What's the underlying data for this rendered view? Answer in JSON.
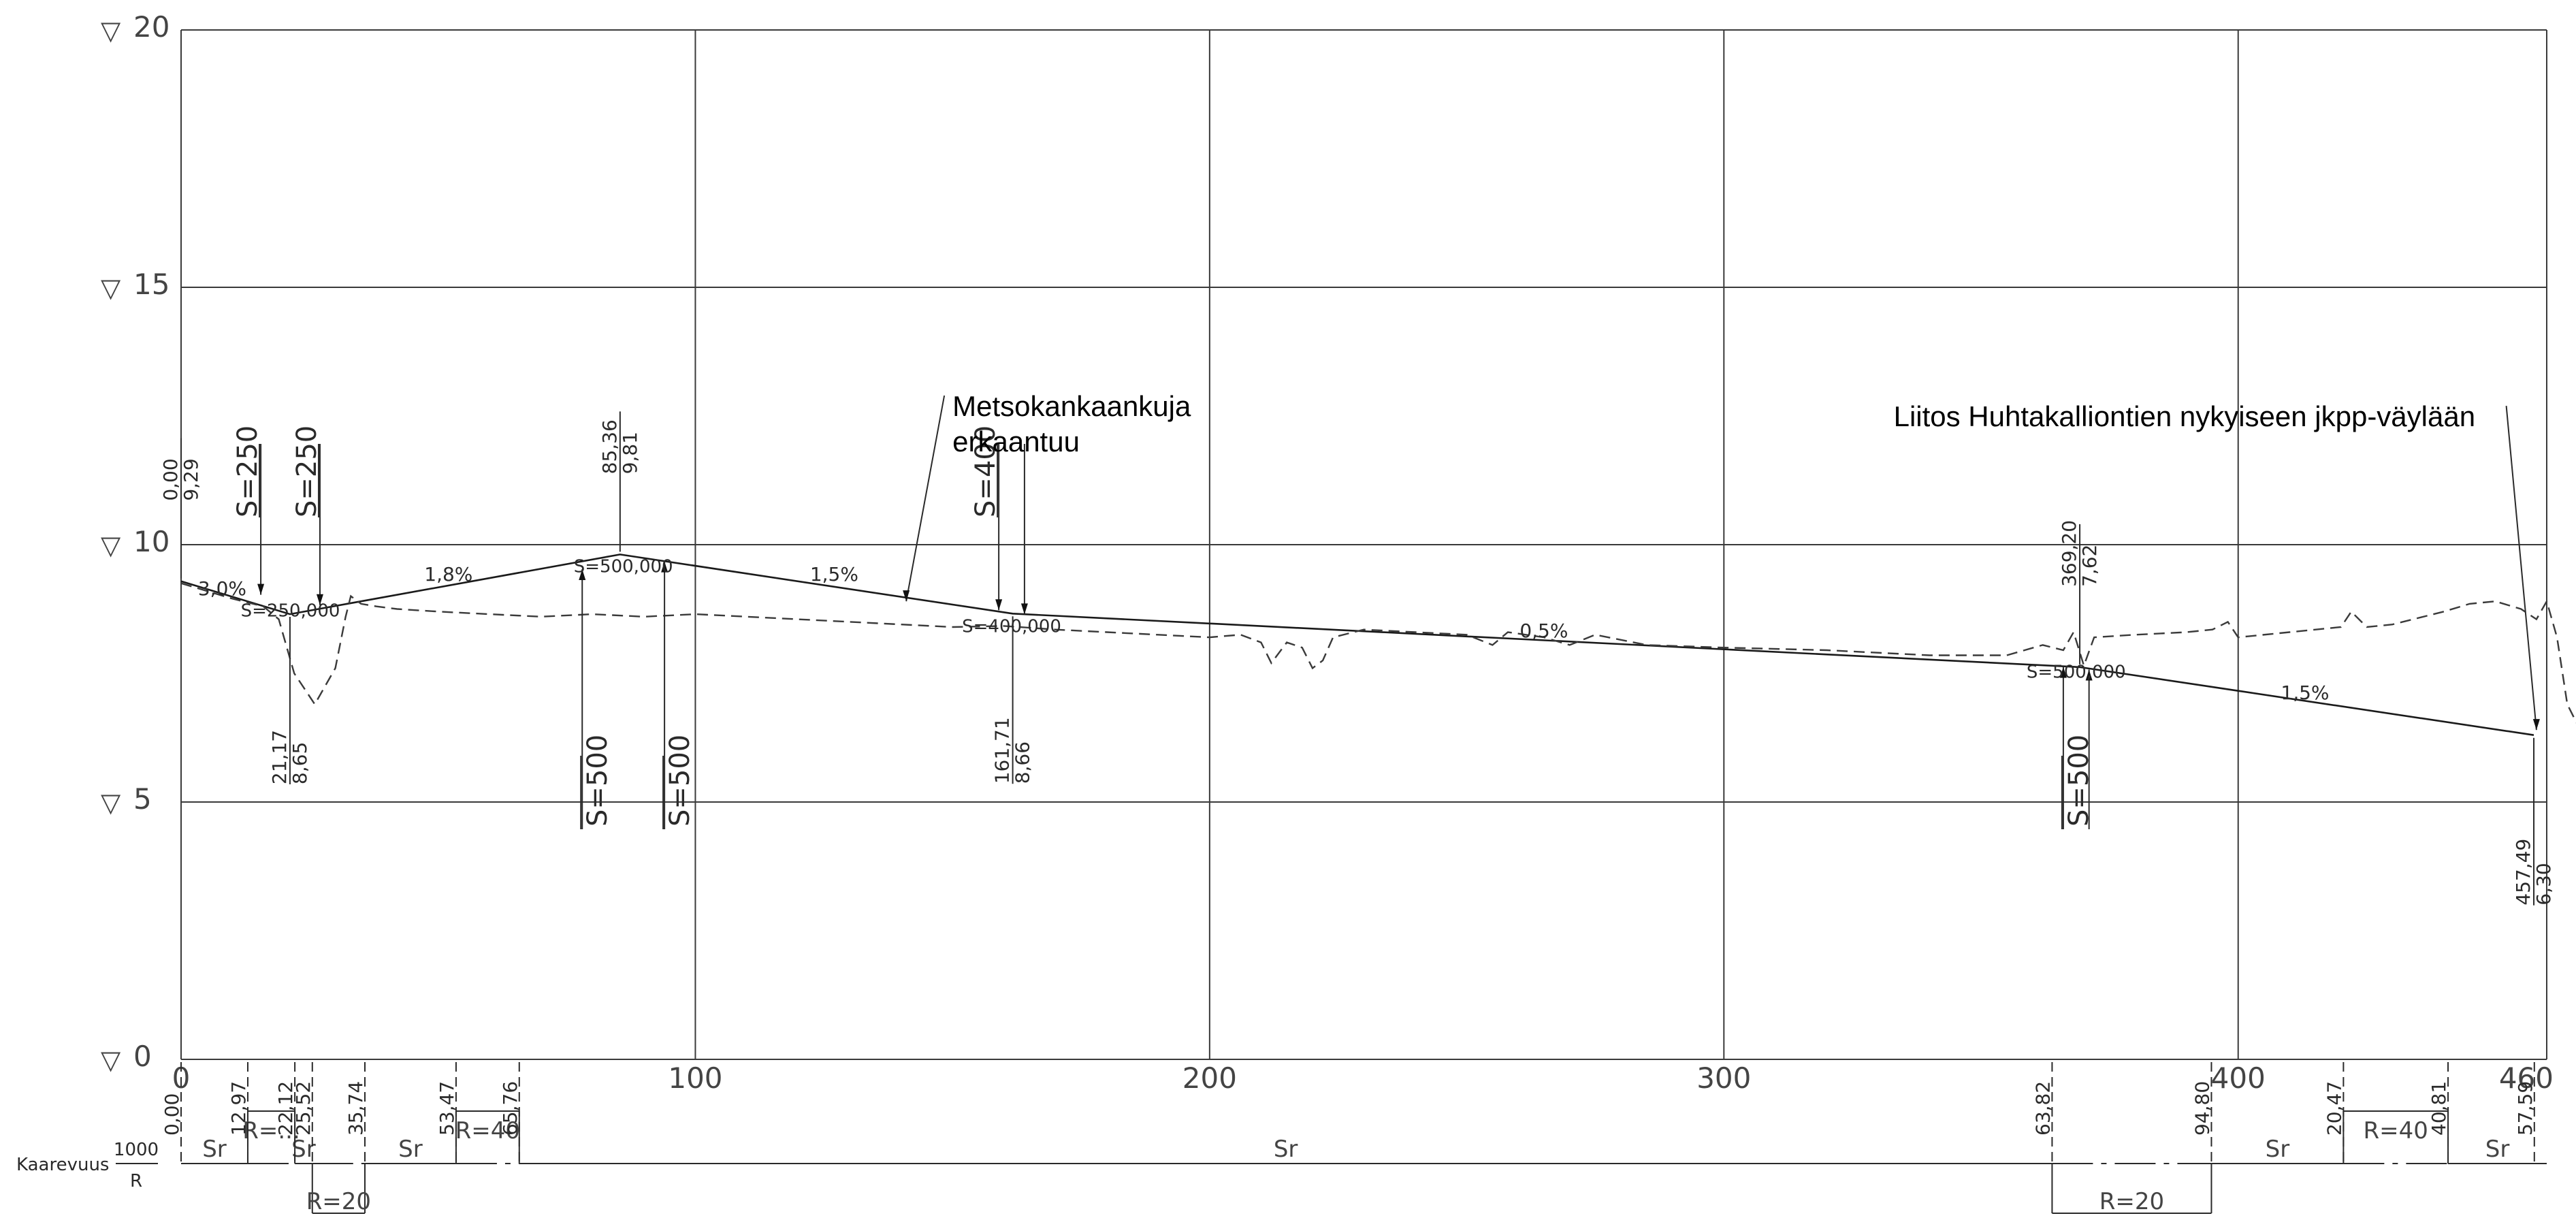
{
  "chart_data": {
    "type": "line",
    "xlim": [
      0,
      460
    ],
    "ylim": [
      0,
      20
    ],
    "x_ticks": [
      {
        "value": 0,
        "label": "0"
      },
      {
        "value": 100,
        "label": "100"
      },
      {
        "value": 200,
        "label": "200"
      },
      {
        "value": 300,
        "label": "300"
      },
      {
        "value": 400,
        "label": "400"
      },
      {
        "value": 460,
        "label": "460"
      }
    ],
    "y_ticks": [
      {
        "value": 0,
        "label": "0"
      },
      {
        "value": 5,
        "label": "5"
      },
      {
        "value": 10,
        "label": "10"
      },
      {
        "value": 15,
        "label": "15"
      },
      {
        "value": 20,
        "label": "20"
      }
    ],
    "level_symbol": "▽",
    "series": [
      {
        "style": "solid",
        "points": [
          [
            0,
            9.29
          ],
          [
            21.17,
            8.65
          ],
          [
            85.36,
            9.81
          ],
          [
            161.71,
            8.66
          ],
          [
            369.2,
            7.62
          ],
          [
            457.49,
            6.3
          ]
        ]
      },
      {
        "style": "dashed",
        "points": [
          [
            0,
            9.25
          ],
          [
            10,
            8.95
          ],
          [
            16,
            8.8
          ],
          [
            19,
            8.55
          ],
          [
            22,
            7.5
          ],
          [
            26,
            6.9
          ],
          [
            30,
            7.6
          ],
          [
            32,
            8.6
          ],
          [
            33,
            9.0
          ],
          [
            35,
            8.85
          ],
          [
            38,
            8.8
          ],
          [
            42,
            8.75
          ],
          [
            50,
            8.7
          ],
          [
            60,
            8.65
          ],
          [
            70,
            8.6
          ],
          [
            80,
            8.65
          ],
          [
            90,
            8.6
          ],
          [
            100,
            8.65
          ],
          [
            110,
            8.6
          ],
          [
            120,
            8.55
          ],
          [
            130,
            8.5
          ],
          [
            140,
            8.45
          ],
          [
            150,
            8.4
          ],
          [
            160,
            8.42
          ],
          [
            170,
            8.35
          ],
          [
            180,
            8.3
          ],
          [
            190,
            8.25
          ],
          [
            200,
            8.2
          ],
          [
            206,
            8.25
          ],
          [
            210,
            8.1
          ],
          [
            212,
            7.7
          ],
          [
            215,
            8.1
          ],
          [
            218,
            8.0
          ],
          [
            220,
            7.6
          ],
          [
            222,
            7.75
          ],
          [
            224,
            8.2
          ],
          [
            230,
            8.35
          ],
          [
            240,
            8.3
          ],
          [
            250,
            8.25
          ],
          [
            255,
            8.05
          ],
          [
            258,
            8.3
          ],
          [
            265,
            8.2
          ],
          [
            270,
            8.05
          ],
          [
            275,
            8.25
          ],
          [
            285,
            8.05
          ],
          [
            300,
            8.0
          ],
          [
            320,
            7.95
          ],
          [
            340,
            7.85
          ],
          [
            355,
            7.85
          ],
          [
            362,
            8.05
          ],
          [
            366,
            7.95
          ],
          [
            368,
            8.3
          ],
          [
            370,
            7.65
          ],
          [
            372,
            8.2
          ],
          [
            380,
            8.25
          ],
          [
            390,
            8.3
          ],
          [
            395,
            8.35
          ],
          [
            398,
            8.5
          ],
          [
            400,
            8.2
          ],
          [
            410,
            8.3
          ],
          [
            420,
            8.4
          ],
          [
            422,
            8.7
          ],
          [
            425,
            8.4
          ],
          [
            430,
            8.45
          ],
          [
            440,
            8.7
          ],
          [
            445,
            8.85
          ],
          [
            450,
            8.9
          ],
          [
            455,
            8.75
          ],
          [
            458,
            8.55
          ],
          [
            460,
            8.9
          ],
          [
            462,
            8.2
          ],
          [
            464,
            6.9
          ],
          [
            466,
            6.5
          ],
          [
            468,
            6.4
          ]
        ]
      }
    ],
    "grades": [
      {
        "x": 8,
        "y": 9.02,
        "label": "3,0%"
      },
      {
        "x": 52,
        "y": 9.3,
        "label": "1,8%"
      },
      {
        "x": 127,
        "y": 9.3,
        "label": "1,5%"
      },
      {
        "x": 265,
        "y": 8.2,
        "label": "0,5%"
      },
      {
        "x": 413,
        "y": 7.0,
        "label": "1,5%"
      }
    ],
    "vertical_curves": [
      {
        "x_start": 15.5,
        "x_end": 27,
        "y_start": 9.0,
        "y_end": 8.8,
        "sag": true,
        "start_label": "S=250",
        "end_label": "S=250",
        "radius_label": "S=250,000"
      },
      {
        "x_start": 78,
        "x_end": 94,
        "y_start": 9.55,
        "y_end": 9.7,
        "sag": false,
        "start_label": "S=500",
        "end_label": "S=500",
        "radius_label": "S=500,000"
      },
      {
        "x_start": 159,
        "x_end": 164,
        "y_start": 8.7,
        "y_end": 8.62,
        "sag": true,
        "start_label": "S=400",
        "end_label": "",
        "radius_label": "S=400,000"
      },
      {
        "x_start": 366,
        "x_end": 371,
        "y_start": 7.65,
        "y_end": 7.6,
        "sag": false,
        "start_label": "S=500",
        "end_label": "",
        "radius_label": "S=500,000"
      }
    ],
    "station_tags": [
      {
        "x": 0,
        "above": true,
        "label": "0,00",
        "elevation": "9,29"
      },
      {
        "x": 21.17,
        "above": false,
        "label": "21,17",
        "elevation": "8,65"
      },
      {
        "x": 85.36,
        "above": true,
        "label": "85,36",
        "elevation": "9,81"
      },
      {
        "x": 161.71,
        "above": false,
        "label": "161,71",
        "elevation": "8,66"
      },
      {
        "x": 369.2,
        "above": true,
        "label": "369,20",
        "elevation": "7,62"
      },
      {
        "x": 457.49,
        "above": false,
        "label": "457,49",
        "elevation": "6,30"
      }
    ],
    "annotations": [
      {
        "lines": [
          "Metsokankaankuja",
          "erkaantuu"
        ],
        "text_x": 150,
        "text_y": 12.5,
        "point_x": 141,
        "point_y": 8.9
      },
      {
        "lines": [
          "Liitos Huhtakalliontien nykyiseen jkpp-väylään"
        ],
        "text_x": 333,
        "text_y": 12.3,
        "point_x": 458,
        "point_y": 6.4
      }
    ],
    "curvature_band": {
      "title": "Kaarevuus",
      "scale_top": "1000",
      "scale_bottom": "R",
      "boundaries": [
        {
          "x": 0,
          "label": "0,00"
        },
        {
          "x": 12.97,
          "label": "12,97"
        },
        {
          "x": 22.12,
          "label": "22,12"
        },
        {
          "x": 25.52,
          "label": "25,52"
        },
        {
          "x": 35.74,
          "label": "35,74"
        },
        {
          "x": 53.47,
          "label": "53,47"
        },
        {
          "x": 65.76,
          "label": "65,76"
        },
        {
          "x": 363.82,
          "label": "63,82"
        },
        {
          "x": 394.8,
          "label": "94,80"
        },
        {
          "x": 420.47,
          "label": "20,47"
        },
        {
          "x": 440.81,
          "label": "40,81"
        },
        {
          "x": 457.59,
          "label": "57,59"
        }
      ],
      "segments": [
        {
          "from": 0,
          "to": 12.97,
          "type": "line",
          "label": "Sr"
        },
        {
          "from": 12.97,
          "to": 22.12,
          "type": "up",
          "label": "R=..."
        },
        {
          "from": 22.12,
          "to": 25.52,
          "type": "line",
          "label": "Sr"
        },
        {
          "from": 25.52,
          "to": 35.74,
          "type": "down",
          "label": "R=20"
        },
        {
          "from": 35.74,
          "to": 53.47,
          "type": "line",
          "label": "Sr"
        },
        {
          "from": 53.47,
          "to": 65.76,
          "type": "up",
          "label": "R=40"
        },
        {
          "from": 65.76,
          "to": 363.82,
          "type": "line",
          "label": "Sr"
        },
        {
          "from": 363.82,
          "to": 394.8,
          "type": "down",
          "label": "R=20"
        },
        {
          "from": 394.8,
          "to": 420.47,
          "type": "line",
          "label": "Sr"
        },
        {
          "from": 420.47,
          "to": 440.81,
          "type": "up",
          "label": "R=40"
        },
        {
          "from": 440.81,
          "to": 460,
          "type": "line",
          "label": "Sr"
        }
      ]
    }
  }
}
